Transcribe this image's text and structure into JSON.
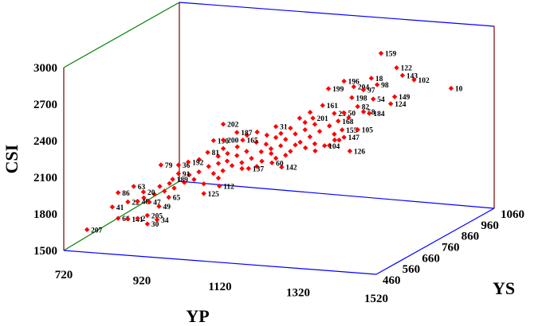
{
  "chart_data": {
    "type": "scatter",
    "title": "",
    "xlabel": "YP",
    "ylabel": "CSI",
    "zlabel": "YS",
    "x_ticks": [
      "720",
      "920",
      "1120",
      "1320",
      "1520"
    ],
    "y_ticks": [
      "1500",
      "1800",
      "2100",
      "2400",
      "2700",
      "3000"
    ],
    "z_ticks": [
      "460",
      "560",
      "660",
      "760",
      "860",
      "960",
      "1060"
    ],
    "xlim": [
      720,
      1520
    ],
    "ylim": [
      1500,
      3000
    ],
    "zlim": [
      460,
      1060
    ],
    "grid": false,
    "colors": {
      "marker": "#ff0000",
      "left_wall": "#008000",
      "back_wall": "#0000ff",
      "vertical_edges": "#800000",
      "floor": "#0000ff"
    },
    "labeled_points": [
      {
        "id": "159",
        "x": 1340,
        "y": 2900,
        "z": 850
      },
      {
        "id": "122",
        "x": 1370,
        "y": 2770,
        "z": 870
      },
      {
        "id": "143",
        "x": 1380,
        "y": 2700,
        "z": 880
      },
      {
        "id": "102",
        "x": 1400,
        "y": 2650,
        "z": 900
      },
      {
        "id": "10",
        "x": 1470,
        "y": 2550,
        "z": 950
      },
      {
        "id": "18",
        "x": 1320,
        "y": 2700,
        "z": 840
      },
      {
        "id": "98",
        "x": 1330,
        "y": 2640,
        "z": 850
      },
      {
        "id": "196",
        "x": 1260,
        "y": 2680,
        "z": 820
      },
      {
        "id": "204",
        "x": 1280,
        "y": 2630,
        "z": 830
      },
      {
        "id": "97",
        "x": 1300,
        "y": 2600,
        "z": 840
      },
      {
        "id": "199",
        "x": 1230,
        "y": 2630,
        "z": 800
      },
      {
        "id": "198",
        "x": 1280,
        "y": 2550,
        "z": 820
      },
      {
        "id": "54",
        "x": 1320,
        "y": 2520,
        "z": 850
      },
      {
        "id": "149",
        "x": 1360,
        "y": 2520,
        "z": 880
      },
      {
        "id": "124",
        "x": 1350,
        "y": 2460,
        "z": 880
      },
      {
        "id": "161",
        "x": 1220,
        "y": 2500,
        "z": 790
      },
      {
        "id": "82",
        "x": 1290,
        "y": 2470,
        "z": 830
      },
      {
        "id": "23",
        "x": 1240,
        "y": 2420,
        "z": 810
      },
      {
        "id": "50",
        "x": 1260,
        "y": 2420,
        "z": 820
      },
      {
        "id": "58",
        "x": 1300,
        "y": 2420,
        "z": 840
      },
      {
        "id": "184",
        "x": 1310,
        "y": 2400,
        "z": 850
      },
      {
        "id": "201",
        "x": 1200,
        "y": 2400,
        "z": 780
      },
      {
        "id": "168",
        "x": 1250,
        "y": 2360,
        "z": 810
      },
      {
        "id": "31",
        "x": 1120,
        "y": 2340,
        "z": 750
      },
      {
        "id": "202",
        "x": 1010,
        "y": 2380,
        "z": 700
      },
      {
        "id": "187",
        "x": 1040,
        "y": 2310,
        "z": 710
      },
      {
        "id": "190",
        "x": 990,
        "y": 2250,
        "z": 690
      },
      {
        "id": "200",
        "x": 1010,
        "y": 2250,
        "z": 700
      },
      {
        "id": "165",
        "x": 1050,
        "y": 2240,
        "z": 720
      },
      {
        "id": "155",
        "x": 1260,
        "y": 2290,
        "z": 810
      },
      {
        "id": "105",
        "x": 1290,
        "y": 2280,
        "z": 830
      },
      {
        "id": "147",
        "x": 1260,
        "y": 2220,
        "z": 820
      },
      {
        "id": "104",
        "x": 1220,
        "y": 2160,
        "z": 800
      },
      {
        "id": "126",
        "x": 1270,
        "y": 2100,
        "z": 830
      },
      {
        "id": "142",
        "x": 1130,
        "y": 2000,
        "z": 760
      },
      {
        "id": "60",
        "x": 1110,
        "y": 2040,
        "z": 750
      },
      {
        "id": "137",
        "x": 1060,
        "y": 2000,
        "z": 730
      },
      {
        "id": "81",
        "x": 980,
        "y": 2160,
        "z": 680
      },
      {
        "id": "79",
        "x": 880,
        "y": 2070,
        "z": 640
      },
      {
        "id": "36",
        "x": 920,
        "y": 2070,
        "z": 650
      },
      {
        "id": "192",
        "x": 940,
        "y": 2090,
        "z": 660
      },
      {
        "id": "91",
        "x": 920,
        "y": 2000,
        "z": 650
      },
      {
        "id": "189",
        "x": 910,
        "y": 1960,
        "z": 640
      },
      {
        "id": "112",
        "x": 1000,
        "y": 1870,
        "z": 700
      },
      {
        "id": "125",
        "x": 970,
        "y": 1820,
        "z": 680
      },
      {
        "id": "63",
        "x": 830,
        "y": 1920,
        "z": 600
      },
      {
        "id": "86",
        "x": 800,
        "y": 1880,
        "z": 580
      },
      {
        "id": "20",
        "x": 850,
        "y": 1870,
        "z": 610
      },
      {
        "id": "65",
        "x": 900,
        "y": 1810,
        "z": 640
      },
      {
        "id": "22",
        "x": 820,
        "y": 1800,
        "z": 590
      },
      {
        "id": "48",
        "x": 840,
        "y": 1800,
        "z": 600
      },
      {
        "id": "47",
        "x": 860,
        "y": 1780,
        "z": 620
      },
      {
        "id": "49",
        "x": 880,
        "y": 1740,
        "z": 630
      },
      {
        "id": "41",
        "x": 790,
        "y": 1770,
        "z": 570
      },
      {
        "id": "205",
        "x": 860,
        "y": 1680,
        "z": 610
      },
      {
        "id": "66",
        "x": 800,
        "y": 1670,
        "z": 580
      },
      {
        "id": "141",
        "x": 820,
        "y": 1660,
        "z": 590
      },
      {
        "id": "2",
        "x": 840,
        "y": 1660,
        "z": 600
      },
      {
        "id": "34",
        "x": 880,
        "y": 1640,
        "z": 620
      },
      {
        "id": "30",
        "x": 860,
        "y": 1610,
        "z": 610
      },
      {
        "id": "207",
        "x": 740,
        "y": 1600,
        "z": 540
      }
    ],
    "cluster_points": [
      {
        "x": 1080,
        "y": 2220,
        "z": 730
      },
      {
        "x": 1100,
        "y": 2200,
        "z": 740
      },
      {
        "x": 1120,
        "y": 2250,
        "z": 750
      },
      {
        "x": 1140,
        "y": 2230,
        "z": 760
      },
      {
        "x": 1160,
        "y": 2270,
        "z": 770
      },
      {
        "x": 1180,
        "y": 2300,
        "z": 780
      },
      {
        "x": 1170,
        "y": 2200,
        "z": 775
      },
      {
        "x": 1190,
        "y": 2240,
        "z": 785
      },
      {
        "x": 1210,
        "y": 2280,
        "z": 795
      },
      {
        "x": 1060,
        "y": 2150,
        "z": 720
      },
      {
        "x": 1040,
        "y": 2120,
        "z": 710
      },
      {
        "x": 1090,
        "y": 2140,
        "z": 735
      },
      {
        "x": 1110,
        "y": 2160,
        "z": 745
      },
      {
        "x": 1130,
        "y": 2180,
        "z": 755
      },
      {
        "x": 1150,
        "y": 2130,
        "z": 765
      },
      {
        "x": 1020,
        "y": 2080,
        "z": 700
      },
      {
        "x": 1000,
        "y": 2060,
        "z": 695
      },
      {
        "x": 980,
        "y": 2040,
        "z": 685
      },
      {
        "x": 1030,
        "y": 2040,
        "z": 705
      },
      {
        "x": 1050,
        "y": 2060,
        "z": 715
      },
      {
        "x": 1070,
        "y": 2090,
        "z": 725
      },
      {
        "x": 960,
        "y": 2000,
        "z": 675
      },
      {
        "x": 940,
        "y": 1980,
        "z": 665
      },
      {
        "x": 990,
        "y": 1980,
        "z": 690
      },
      {
        "x": 1010,
        "y": 2000,
        "z": 698
      },
      {
        "x": 950,
        "y": 1940,
        "z": 670
      },
      {
        "x": 930,
        "y": 1920,
        "z": 660
      },
      {
        "x": 970,
        "y": 1900,
        "z": 680
      },
      {
        "x": 1000,
        "y": 1940,
        "z": 695
      },
      {
        "x": 1200,
        "y": 2340,
        "z": 790
      },
      {
        "x": 1230,
        "y": 2320,
        "z": 805
      },
      {
        "x": 1180,
        "y": 2360,
        "z": 780
      },
      {
        "x": 1150,
        "y": 2320,
        "z": 765
      },
      {
        "x": 1240,
        "y": 2250,
        "z": 810
      },
      {
        "x": 1250,
        "y": 2200,
        "z": 815
      },
      {
        "x": 1230,
        "y": 2160,
        "z": 805
      },
      {
        "x": 1200,
        "y": 2180,
        "z": 790
      },
      {
        "x": 1140,
        "y": 2100,
        "z": 760
      },
      {
        "x": 1120,
        "y": 2080,
        "z": 750
      },
      {
        "x": 1090,
        "y": 2060,
        "z": 738
      },
      {
        "x": 1080,
        "y": 2020,
        "z": 732
      },
      {
        "x": 1050,
        "y": 2010,
        "z": 716
      },
      {
        "x": 1020,
        "y": 2140,
        "z": 702
      },
      {
        "x": 1000,
        "y": 2120,
        "z": 694
      },
      {
        "x": 960,
        "y": 2100,
        "z": 676
      },
      {
        "x": 910,
        "y": 1880,
        "z": 648
      },
      {
        "x": 890,
        "y": 1860,
        "z": 638
      },
      {
        "x": 870,
        "y": 1840,
        "z": 626
      },
      {
        "x": 850,
        "y": 1820,
        "z": 612
      },
      {
        "x": 880,
        "y": 1900,
        "z": 634
      },
      {
        "x": 900,
        "y": 1920,
        "z": 644
      },
      {
        "x": 1060,
        "y": 2280,
        "z": 722
      },
      {
        "x": 1080,
        "y": 2300,
        "z": 734
      },
      {
        "x": 1270,
        "y": 2380,
        "z": 824
      },
      {
        "x": 1170,
        "y": 2400,
        "z": 772
      },
      {
        "x": 1190,
        "y": 2440,
        "z": 786
      },
      {
        "x": 1100,
        "y": 2270,
        "z": 744
      },
      {
        "x": 1160,
        "y": 2180,
        "z": 770
      },
      {
        "x": 1130,
        "y": 2280,
        "z": 756
      },
      {
        "x": 1040,
        "y": 2190,
        "z": 712
      },
      {
        "x": 1010,
        "y": 2180,
        "z": 700
      },
      {
        "x": 1110,
        "y": 2120,
        "z": 746
      },
      {
        "x": 1200,
        "y": 2120,
        "z": 792
      },
      {
        "x": 1240,
        "y": 2200,
        "z": 812
      },
      {
        "x": 1180,
        "y": 2150,
        "z": 782
      }
    ]
  }
}
